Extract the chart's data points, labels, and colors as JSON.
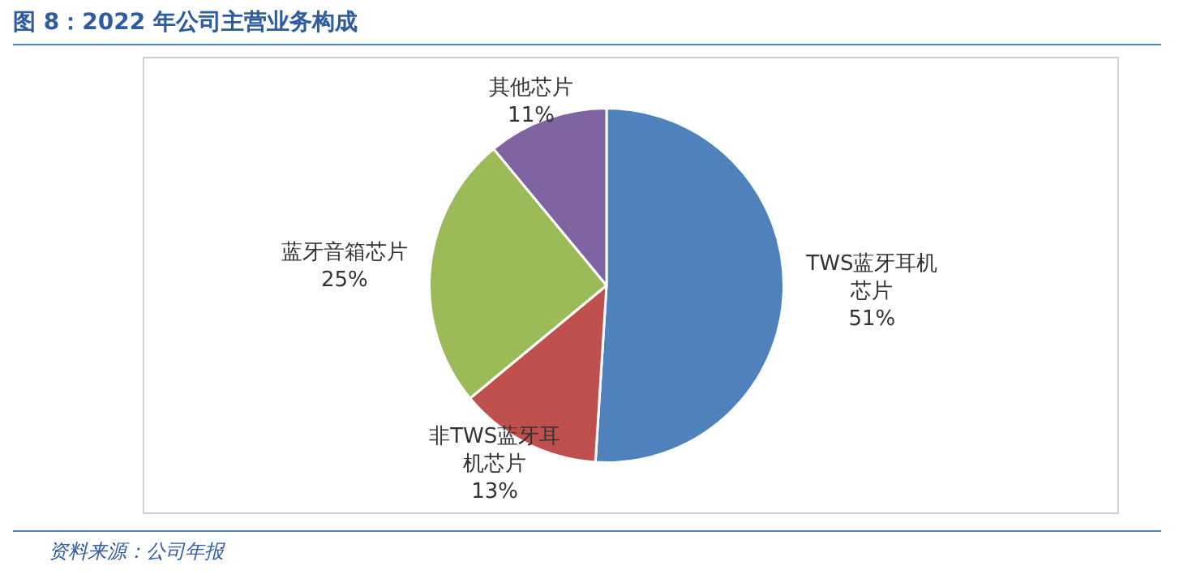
{
  "chart_data": {
    "type": "pie",
    "title": "图 8：2022 年公司主营业务构成",
    "categories": [
      "TWS蓝牙耳机芯片",
      "非TWS蓝牙耳机芯片",
      "蓝牙音箱芯片",
      "其他芯片"
    ],
    "values": [
      51,
      13,
      25,
      11
    ],
    "value_labels": [
      "51%",
      "13%",
      "25%",
      "11%"
    ],
    "colors": [
      "#4f81bd",
      "#c0504d",
      "#9bbb59",
      "#8064a2"
    ],
    "legend": false,
    "annotations": [
      "资料来源：公司年报"
    ]
  }
}
